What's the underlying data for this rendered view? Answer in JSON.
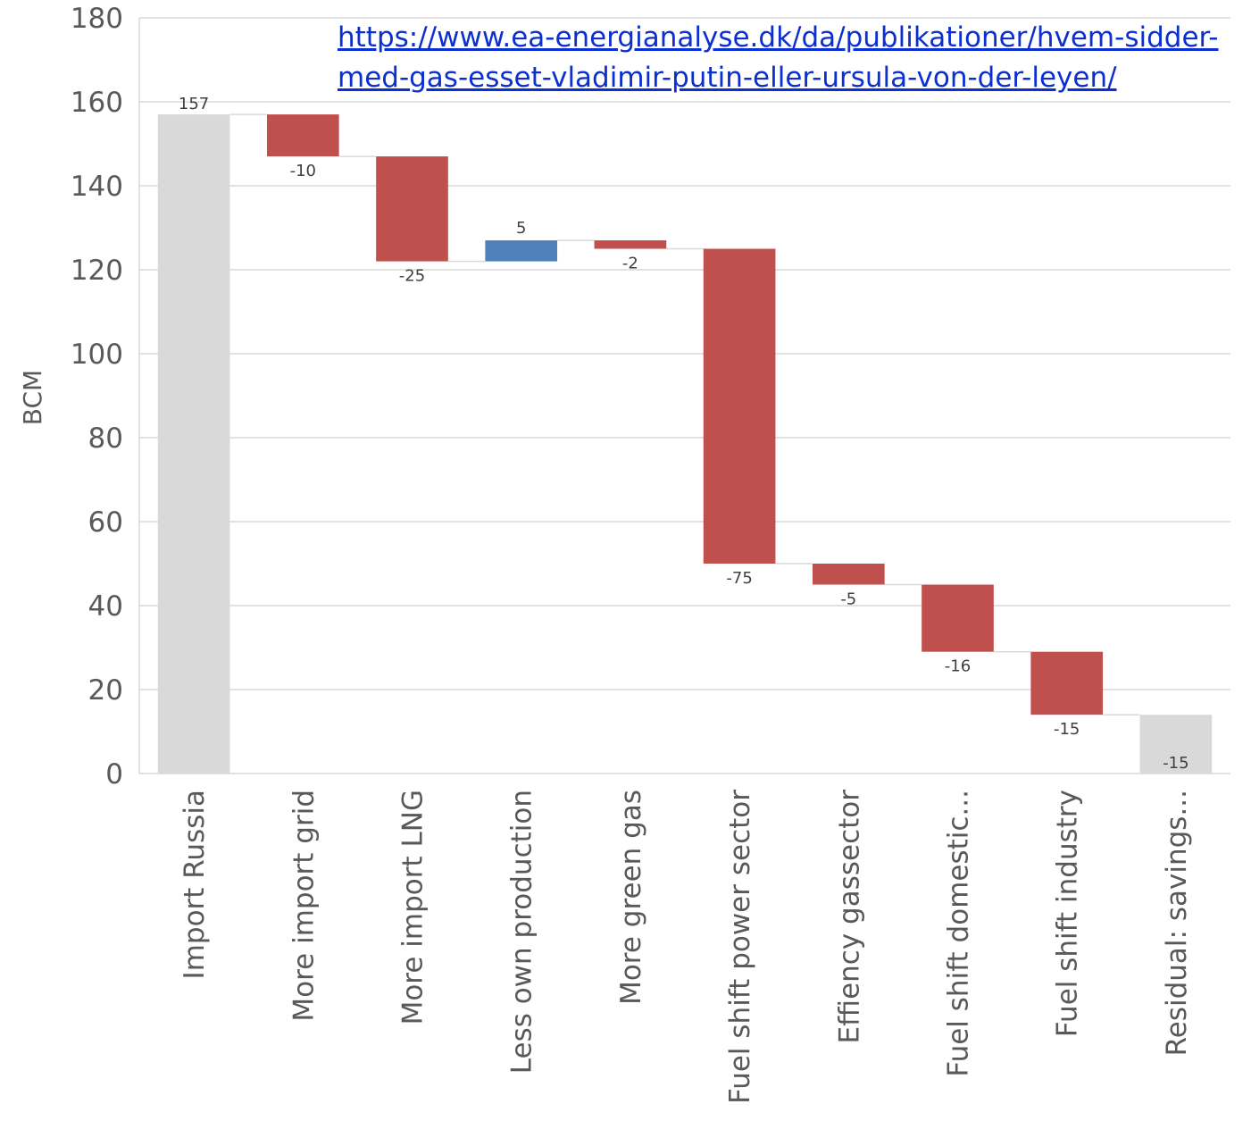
{
  "source_url": "https://www.ea-energianalyse.dk/da/publikationer/hvem-sidder-med-gas-esset-vladimir-putin-eller-ursula-von-der-leyen/",
  "colors": {
    "total": "#d9d9d9",
    "decrease": "#c0504d",
    "increase": "#4f81bd",
    "grid": "#d9d9d9",
    "text": "#595959",
    "link": "#0b2fd0"
  },
  "chart_data": {
    "type": "bar",
    "subtype": "waterfall",
    "ylabel": "BCM",
    "ylim": [
      0,
      180
    ],
    "yticks": [
      0,
      20,
      40,
      60,
      80,
      100,
      120,
      140,
      160,
      180
    ],
    "grid": true,
    "categories": [
      "Import Russia",
      "More import grid",
      "More import LNG",
      "Less own production",
      "More green gas",
      "Fuel shift power sector",
      "Effiency gassector",
      "Fuel shift domestic...",
      "Fuel shift industry",
      "Residual: savings..."
    ],
    "values": [
      157,
      -10,
      -25,
      5,
      -2,
      -75,
      -5,
      -16,
      -15,
      -15
    ],
    "kinds": [
      "total",
      "decrease",
      "decrease",
      "increase",
      "decrease",
      "decrease",
      "decrease",
      "decrease",
      "decrease",
      "total"
    ],
    "data_labels": [
      "157",
      "-10",
      "-25",
      "5",
      "-2",
      "-75",
      "-5",
      "-16",
      "-15",
      "-15"
    ]
  }
}
